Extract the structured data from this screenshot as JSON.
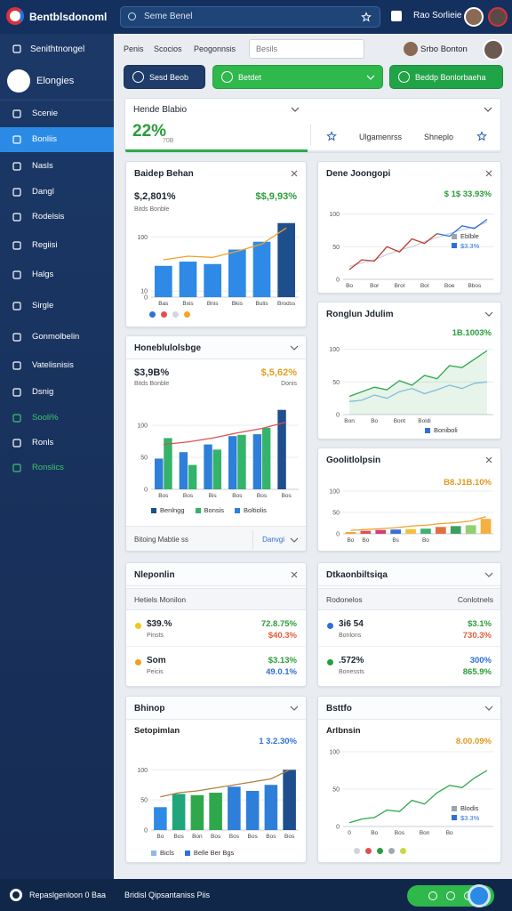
{
  "header": {
    "title": "Bentblsdonoml",
    "search": "Seme Benel",
    "user": "Rao Sorlieie"
  },
  "sidebar": {
    "section": "Senithtnongel",
    "brand": "Elongies",
    "items": [
      "Scenie",
      "Bonliis",
      "Nasls",
      "Dangl",
      "Rodelsis",
      "Regiisi",
      "Halgs",
      "Sirgle",
      "Gonmolbelin",
      "Vatelisnisis",
      "Dsnig",
      "Sooli%",
      "Ronls",
      "Ronslics"
    ],
    "active": 1,
    "highlight": [
      11,
      13
    ]
  },
  "toolbar": {
    "tabs": [
      "Penis",
      "Scocios",
      "Peogonnsis"
    ],
    "input": "Besils",
    "user": "Srbo Bonton",
    "buttons": [
      "Sesd Beob",
      "Betdet",
      "Beddp Bonlorbaeha"
    ]
  },
  "summary": {
    "title": "Hende Blabio",
    "value": "22%",
    "note": "70B",
    "tabs": [
      "Ulgamenrss",
      "Shneplo"
    ]
  },
  "cards": [
    {
      "title": "Baidep Behan",
      "icon": "close",
      "kpis": [
        {
          "text": "$,2,801%",
          "color": "#1d2530"
        },
        {
          "text": "$$,9,93%",
          "color": "#2a9d3a"
        }
      ],
      "subs": [
        "Bitds Bonble"
      ],
      "chart": {
        "type": "bar",
        "categories": [
          "Bas",
          "Bxis",
          "Bnis",
          "Bkis",
          "Bulis",
          "Brodss"
        ],
        "ylim": [
          0,
          130
        ],
        "yticks": [
          0,
          10,
          100
        ],
        "series": [
          {
            "colors": [
              "#2e8ae6",
              "#2e8ae6",
              "#2e8ae6",
              "#2e8ae6",
              "#2e8ae6",
              "#1f4e8c"
            ],
            "values": [
              52,
              59,
              55,
              79,
              92,
              123
            ]
          },
          {
            "kind": "line",
            "color": "#f0a030",
            "values": [
              62,
              68,
              66,
              76,
              88,
              115
            ]
          }
        ]
      },
      "dots": [
        "#2e6fd9",
        "#e05050",
        "#cfd6dd",
        "#f5a623"
      ]
    },
    {
      "title": "Dene Joongopi",
      "icon": "close",
      "kpis": [
        {
          "text": "$ 1$ 33.93%",
          "color": "#2a9d3a"
        }
      ],
      "chart": {
        "type": "line",
        "categories": [
          "Bo",
          null,
          "Bor",
          null,
          "Brol",
          null,
          "Bol",
          null,
          "Boe",
          null,
          "Bbos",
          null
        ],
        "ylim": [
          0,
          120
        ],
        "yticks": [
          0,
          50,
          100
        ],
        "series": [
          {
            "color": "#c9d3de",
            "values": [
              20,
              25,
              30,
              38,
              45,
              50,
              58,
              64,
              70,
              76,
              80,
              88
            ]
          },
          {
            "color": "#c0392b",
            "values": [
              15,
              30,
              28,
              50,
              42,
              62,
              55,
              70,
              null,
              null,
              null,
              null
            ]
          },
          {
            "color": "#2e6fd9",
            "values": [
              null,
              null,
              null,
              null,
              null,
              null,
              null,
              70,
              66,
              82,
              78,
              92
            ]
          }
        ]
      },
      "legend": [
        {
          "label": "Eblble",
          "color": "#9aa4ae"
        },
        {
          "label": "$3.3%",
          "color": "#2e6fd9"
        }
      ]
    },
    {
      "title": "Honeblulolsbge",
      "icon": "caret",
      "kpis": [
        {
          "text": "$3,9B%",
          "color": "#1d2530"
        },
        {
          "text": "$,5,62%",
          "color": "#e0a020"
        }
      ],
      "subs": [
        "Bitds Bonble",
        "Donis"
      ],
      "chart": {
        "type": "bar",
        "categories": [
          "Bos",
          "Bos",
          "Bis",
          "Bos",
          "Bos",
          "Bos"
        ],
        "ylim": [
          0,
          150
        ],
        "yticks": [
          0,
          50,
          100
        ],
        "series": [
          {
            "colors": [
              "#2e7fd9",
              "#2e7fd9",
              "#2e7fd9",
              "#2e7fd9",
              "#2e7fd9",
              "#1f4e8c"
            ],
            "values": [
              48,
              58,
              70,
              83,
              86,
              124
            ]
          },
          {
            "color": "#34b36a",
            "values": [
              80,
              38,
              62,
              85,
              96,
              null
            ]
          },
          {
            "kind": "line",
            "color": "#d9534f",
            "values": [
              70,
              74,
              80,
              88,
              95,
              105
            ]
          }
        ]
      },
      "legend": [
        {
          "label": "Benlngg",
          "color": "#1f4e8c"
        },
        {
          "label": "Bonsis",
          "color": "#34b36a"
        },
        {
          "label": "Boltiolis",
          "color": "#2e7fd9"
        }
      ],
      "footer": [
        "Bitoing Mabtie ss",
        "Danvgi"
      ]
    },
    {
      "title": "Ronglun Jdulim",
      "icon": "caret",
      "kpis": [
        {
          "text": "1B.1003%",
          "color": "#2a9d3a"
        }
      ],
      "chart": {
        "type": "line",
        "categories": [
          "Bon",
          null,
          "Bo",
          null,
          "Bont",
          null,
          "Boldi",
          null,
          null,
          null,
          null,
          null
        ],
        "ylim": [
          0,
          120
        ],
        "yticks": [
          0,
          50,
          100
        ],
        "series": [
          {
            "color": "#8fc3ea",
            "values": [
              20,
              22,
              30,
              25,
              35,
              40,
              32,
              38,
              45,
              40,
              48,
              50
            ]
          },
          {
            "color": "#2ea84a",
            "area": true,
            "values": [
              28,
              35,
              42,
              38,
              52,
              45,
              60,
              55,
              75,
              72,
              85,
              98
            ]
          }
        ]
      },
      "legend": [
        {
          "label": "Boniboli",
          "color": "#2e6fd9"
        }
      ]
    },
    {
      "title": "Goolitlolpsin",
      "icon": "close",
      "kpis": [
        {
          "text": "B8.J1B.10%",
          "color": "#e09a20"
        }
      ],
      "chart": {
        "type": "bar",
        "categories": [
          "Bo",
          "Bo",
          null,
          "Bs",
          null,
          "Bo",
          null,
          null,
          null,
          null
        ],
        "ylim": [
          0,
          100
        ],
        "yticks": [
          0,
          50,
          100
        ],
        "series": [
          {
            "colors": [
              "#f0a030",
              "#e05050",
              "#d04070",
              "#3a6fd9",
              "#f0c040",
              "#40b070",
              "#e07040",
              "#3aa060",
              "#90d070",
              "#f5b040"
            ],
            "values": [
              4,
              7,
              9,
              10,
              11,
              12,
              16,
              18,
              20,
              35
            ]
          },
          {
            "kind": "line",
            "color": "#f0a030",
            "values": [
              8,
              10,
              12,
              14,
              18,
              20,
              24,
              26,
              30,
              40
            ]
          }
        ]
      }
    },
    {
      "title": "Nleponlin",
      "icon": "close",
      "subheader": "Hetiels Monilon",
      "rows": [
        {
          "label": "$39.%",
          "sub": "Pinsts",
          "v1": "72.8.75%",
          "v2": "$40.3%",
          "dot": "#f5c518",
          "c1": "#2a9d3a",
          "c2": "#e0603a"
        },
        {
          "label": "Som",
          "sub": "Peicis",
          "v1": "$3.13%",
          "v2": "49.0.1%",
          "dot": "#f0a020",
          "c1": "#2a9d3a",
          "c2": "#2e6fd9"
        }
      ]
    },
    {
      "title": "Dtkaonbiltsiqa",
      "icon": "caret",
      "subheader": "Rodonelos",
      "subheader2": "Conlotnels",
      "rows": [
        {
          "label": "3i6 54",
          "sub": "Bonlons",
          "v1": "$3.1%",
          "v2": "730.3%",
          "dot": "#2e6fd9",
          "c1": "#2a9d3a",
          "c2": "#e0603a"
        },
        {
          "label": ".572%",
          "sub": "Bonessts",
          "v1": "300%",
          "v2": "865.9%",
          "dot": "#2a9d3a",
          "c1": "#2e6fd9",
          "c2": "#2a9d3a"
        }
      ]
    },
    {
      "title": "Bhinop",
      "icon": "caret",
      "subtitle": "Setopimlan",
      "kpis": [
        {
          "text": "1 3.2.30%",
          "color": "#2e6fd9"
        }
      ],
      "chart": {
        "type": "bar",
        "categories": [
          "Bo",
          "Bos",
          "Bon",
          "Bos",
          "Bos",
          "Bos",
          "Bos",
          "Bos"
        ],
        "ylim": [
          0,
          130
        ],
        "yticks": [
          0,
          50,
          100
        ],
        "series": [
          {
            "colors": [
              "#2e8ae6",
              "#20a67a",
              "#2ea84a",
              "#2ea84a",
              "#2e7fd9",
              "#2e7fd9",
              "#2e7fd9",
              "#1f4e8c"
            ],
            "values": [
              38,
              60,
              58,
              62,
              72,
              65,
              75,
              100
            ]
          },
          {
            "kind": "line",
            "color": "#b08040",
            "values": [
              55,
              62,
              65,
              70,
              75,
              80,
              85,
              100
            ]
          }
        ]
      },
      "legend": [
        {
          "label": "Bicls",
          "color": "#90b8e8"
        },
        {
          "label": "Belle Ber Bgs",
          "color": "#2e6fd9"
        }
      ]
    },
    {
      "title": "Bsttfo",
      "icon": "caret",
      "subtitle": "Arlbnsin",
      "kpis": [
        {
          "text": "8.00.09%",
          "color": "#e09a20"
        }
      ],
      "chart": {
        "type": "line",
        "categories": [
          "0",
          null,
          "Bo",
          null,
          "Bos",
          null,
          "Bon",
          null,
          "Bo",
          null,
          null,
          null
        ],
        "ylim": [
          0,
          100
        ],
        "yticks": [
          0,
          50,
          100
        ],
        "series": [
          {
            "color": "#2ea84a",
            "values": [
              5,
              10,
              12,
              22,
              20,
              35,
              30,
              45,
              55,
              52,
              65,
              75
            ]
          }
        ]
      },
      "legend": [
        {
          "label": "Blodis",
          "color": "#9aa4ae"
        },
        {
          "label": "$3.3%",
          "color": "#2e6fd9"
        }
      ],
      "dots": [
        "#d0d5da",
        "#e05050",
        "#2a9d3a",
        "#a0a8b0",
        "#c8d840"
      ]
    }
  ],
  "footer": {
    "left": "Repaslgenloon 0 Baa",
    "middle": "Bridisl Qipsantaniss Piis"
  }
}
